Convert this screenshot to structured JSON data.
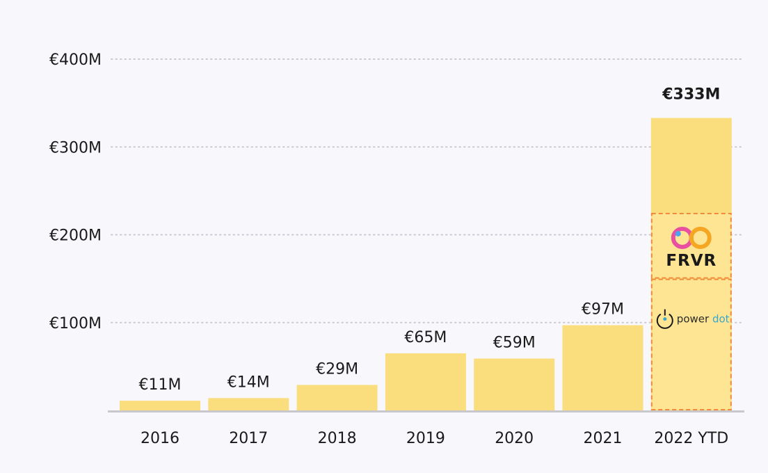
{
  "chart_data": {
    "type": "bar",
    "title": "",
    "xlabel": "",
    "ylabel": "",
    "categories": [
      "2016",
      "2017",
      "2018",
      "2019",
      "2020",
      "2021",
      "2022 YTD"
    ],
    "values": [
      11,
      14,
      29,
      65,
      59,
      97,
      333
    ],
    "value_labels": [
      "€11M",
      "€14M",
      "€29M",
      "€65M",
      "€59M",
      "€97M",
      "€333M"
    ],
    "ylim": [
      0,
      400
    ],
    "yticks": [
      100,
      200,
      300,
      400
    ],
    "ytick_labels": [
      "€100M",
      "€200M",
      "€300M",
      "€400M"
    ],
    "grid": true,
    "highlight_segments": [
      {
        "category": "2022 YTD",
        "from": 0,
        "to": 150,
        "logo": "power-dot-logo",
        "brand_text": [
          "power",
          "dot"
        ]
      },
      {
        "category": "2022 YTD",
        "from": 150,
        "to": 225,
        "logo": "frvr-logo",
        "brand_text": [
          "FRVR"
        ]
      }
    ],
    "colors": {
      "bar": "#fadd7c",
      "segment_fill": "#fde594",
      "segment_border": "#f08a3c",
      "grid": "#c9c9d4",
      "axis": "#c8c8cc"
    }
  }
}
